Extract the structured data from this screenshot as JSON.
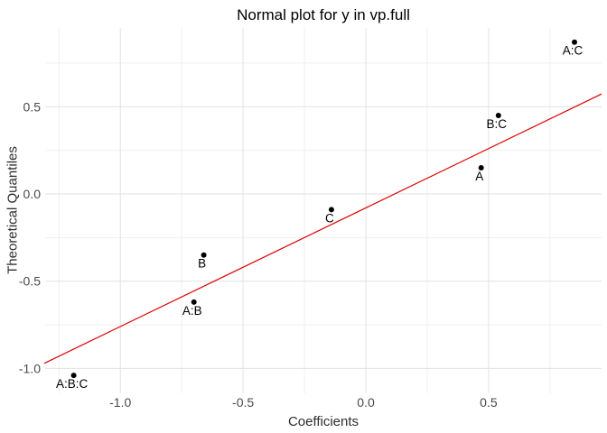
{
  "chart_data": {
    "type": "scatter",
    "title": "Normal plot for y in vp.full",
    "xlabel": "Coefficients",
    "ylabel": "Theoretical Quantiles",
    "xlim": [
      -1.31,
      0.96
    ],
    "ylim": [
      -1.13,
      0.95
    ],
    "grid": true,
    "legend": "none",
    "x_ticks": [
      {
        "v": -1.0,
        "label": "-1.0"
      },
      {
        "v": -0.5,
        "label": "-0.5"
      },
      {
        "v": 0.0,
        "label": "0.0"
      },
      {
        "v": 0.5,
        "label": "0.5"
      }
    ],
    "y_ticks": [
      {
        "v": -1.0,
        "label": "-1.0"
      },
      {
        "v": -0.5,
        "label": "-0.5"
      },
      {
        "v": 0.0,
        "label": "0.0"
      },
      {
        "v": 0.5,
        "label": "0.5"
      }
    ],
    "x_minor": [
      -1.25,
      -0.75,
      -0.25,
      0.25,
      0.75
    ],
    "y_minor": [
      -0.75,
      -0.25,
      0.25,
      0.75
    ],
    "points": [
      {
        "label": "A:B:C",
        "x": -1.19,
        "y": -1.04
      },
      {
        "label": "A:B",
        "x": -0.7,
        "y": -0.62
      },
      {
        "label": "B",
        "x": -0.66,
        "y": -0.35
      },
      {
        "label": "C",
        "x": -0.14,
        "y": -0.09
      },
      {
        "label": "A",
        "x": 0.47,
        "y": 0.15
      },
      {
        "label": "B:C",
        "x": 0.54,
        "y": 0.45
      },
      {
        "label": "A:C",
        "x": 0.85,
        "y": 0.87
      }
    ],
    "ref_line": {
      "slope": 0.68,
      "intercept": -0.08
    }
  },
  "colors": {
    "background": "#ffffff",
    "point": "#000000",
    "point_label": "#000000",
    "ref_line": "#dd0000",
    "grid_major": "#e2e2e2",
    "grid_minor": "#efefef",
    "tick_text": "#4a4a4a",
    "axis_title": "#2e2e2e",
    "title": "#000000"
  }
}
